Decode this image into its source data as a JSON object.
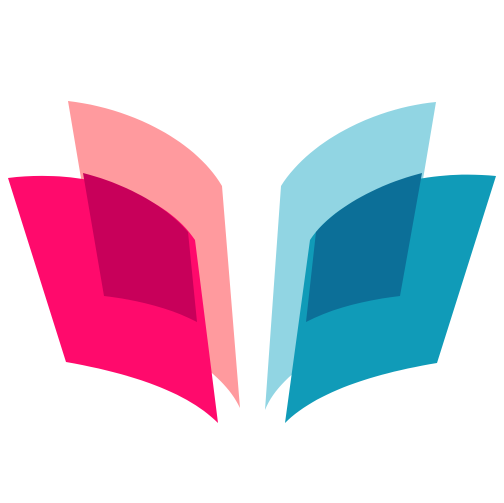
{
  "logo": {
    "icon": "open-book-icon",
    "colors": {
      "background": "#ffffff",
      "left_back_page": "#FF9A9E",
      "left_front_page": "#FF0A6C",
      "left_overlap": "#C8005A",
      "right_back_page": "#91D5E3",
      "right_front_page": "#109BB8",
      "right_overlap": "#0C6F98"
    }
  }
}
